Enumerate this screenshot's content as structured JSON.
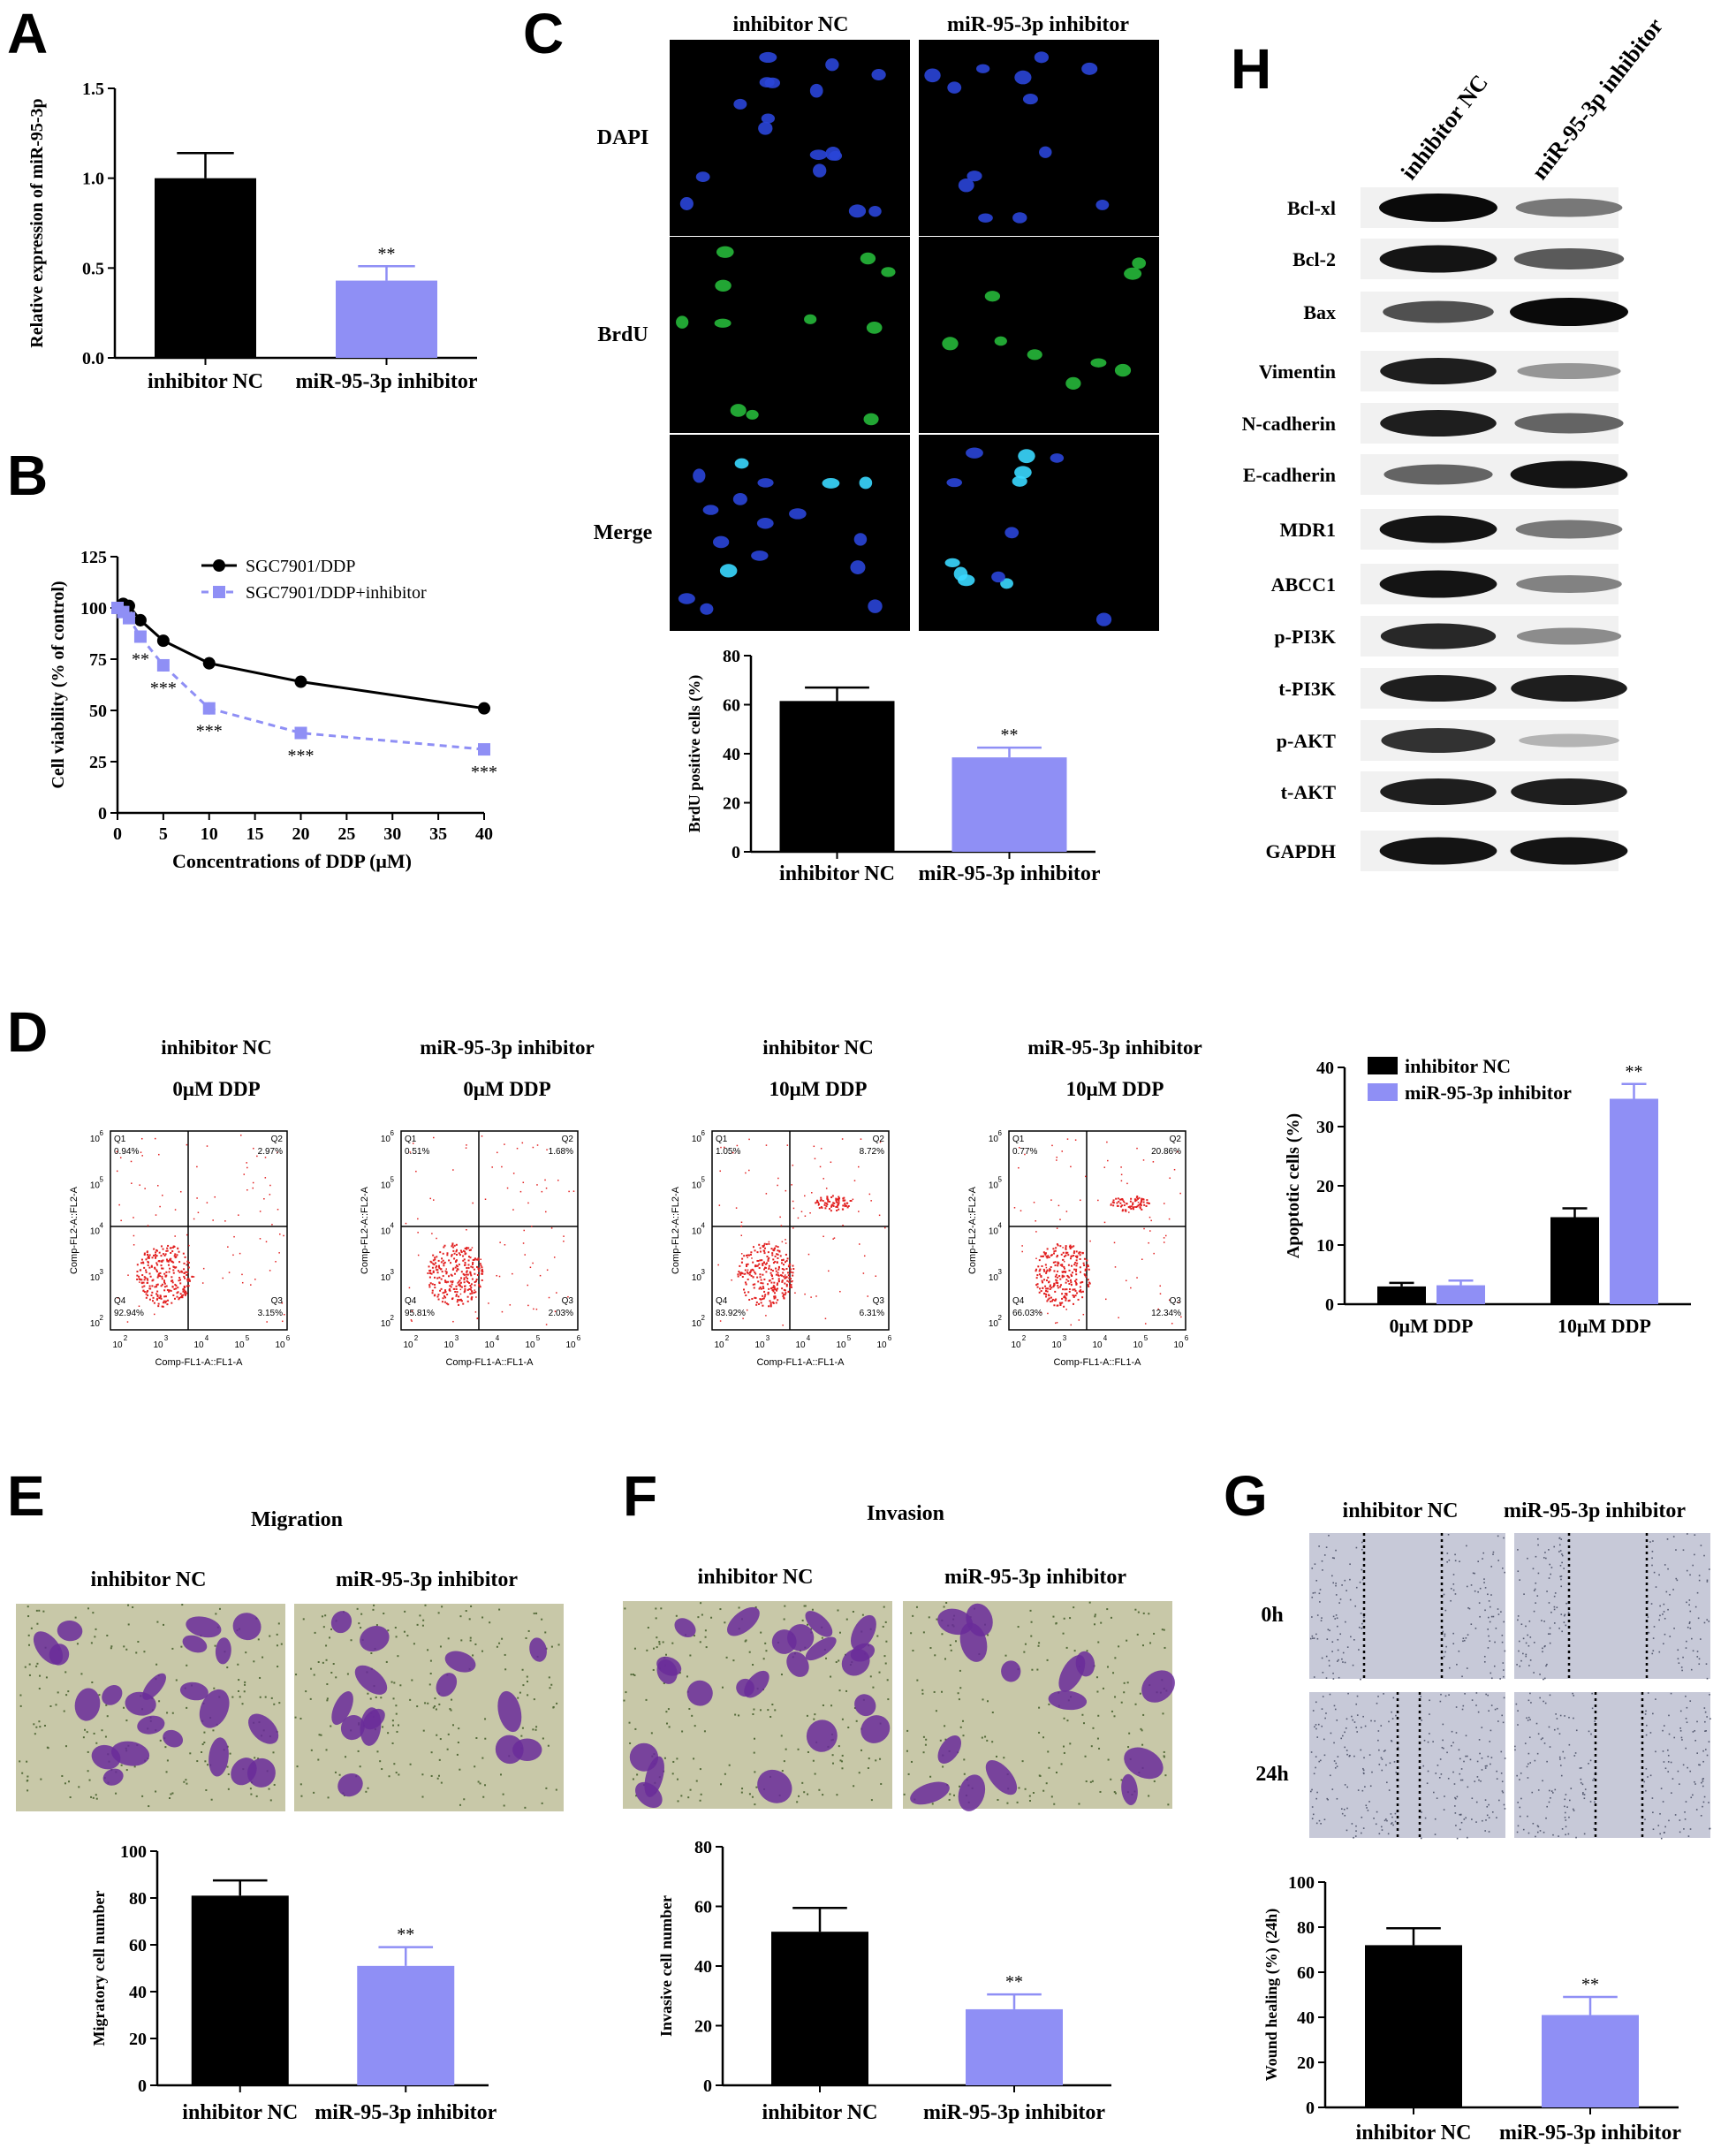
{
  "colors": {
    "nc": "#000000",
    "inh": "#8f8ff5",
    "dapi": "#2a45d8",
    "brdu": "#26b83a",
    "merge": "#3ad8ff",
    "flow": "#e22020",
    "crystal": "#6a2b9a",
    "crystal_bg": "#c8c8a8",
    "wound_bg": "#c7c9d8"
  },
  "chart_data": [
    {
      "panel": "A",
      "type": "bar",
      "categories": [
        "inhibitor NC",
        "miR-95-3p inhibitor"
      ],
      "values": [
        1.0,
        0.43
      ],
      "errors": [
        0.14,
        0.08
      ],
      "significance": [
        "",
        "**"
      ],
      "ylabel": "Relative expression of miR-95-3p",
      "ylim": [
        0,
        1.5
      ],
      "yticks": [
        "0.0",
        "0.5",
        "1.0",
        "1.5"
      ]
    },
    {
      "panel": "B",
      "type": "line",
      "xlabel": "Concentrations of DDP (μM)",
      "ylabel": "Cell viability (% of control)",
      "xlim": [
        0,
        40
      ],
      "ylim": [
        0,
        125
      ],
      "xticks": [
        "0",
        "5",
        "10",
        "15",
        "20",
        "25",
        "30",
        "35",
        "40"
      ],
      "yticks": [
        "0",
        "25",
        "50",
        "75",
        "100",
        "125"
      ],
      "series": [
        {
          "name": "SGC7901/DDP",
          "x": [
            0,
            0.625,
            1.25,
            2.5,
            5,
            10,
            20,
            40
          ],
          "y": [
            100,
            102,
            101,
            94,
            84,
            73,
            64,
            51
          ],
          "errors": [
            2,
            2,
            2,
            3,
            2,
            3,
            2,
            2
          ],
          "significance": [
            "",
            "",
            "",
            "",
            "",
            "",
            "",
            ""
          ]
        },
        {
          "name": "SGC7901/DDP+inhibitor",
          "x": [
            0,
            0.625,
            1.25,
            2.5,
            5,
            10,
            20,
            40
          ],
          "y": [
            100,
            98,
            95,
            86,
            72,
            51,
            39,
            31
          ],
          "errors": [
            2,
            2,
            2,
            3,
            3,
            3,
            2,
            2
          ],
          "significance": [
            "",
            "",
            "",
            "**",
            "***",
            "***",
            "***",
            "***"
          ]
        }
      ]
    },
    {
      "panel": "C",
      "type": "bar",
      "categories": [
        "inhibitor NC",
        "miR-95-3p inhibitor"
      ],
      "values": [
        61.5,
        38.5
      ],
      "errors": [
        5.5,
        4.0
      ],
      "significance": [
        "",
        "**"
      ],
      "ylabel": "BrdU positive cells (%)",
      "ylim": [
        0,
        80
      ],
      "yticks": [
        "0",
        "20",
        "40",
        "60",
        "80"
      ]
    },
    {
      "panel": "D",
      "type": "bar",
      "categories": [
        "0μM DDP",
        "10μM DDP"
      ],
      "series": [
        {
          "name": "inhibitor NC",
          "values": [
            3.0,
            14.7
          ],
          "errors": [
            0.6,
            1.5
          ]
        },
        {
          "name": "miR-95-3p inhibitor",
          "values": [
            3.2,
            34.7
          ],
          "errors": [
            0.8,
            2.5
          ]
        }
      ],
      "significance": [
        "",
        "**"
      ],
      "ylabel": "Apoptotic cells (%)",
      "ylim": [
        0,
        40
      ],
      "yticks": [
        "0",
        "10",
        "20",
        "30",
        "40"
      ]
    },
    {
      "panel": "E",
      "type": "bar",
      "categories": [
        "inhibitor NC",
        "miR-95-3p inhibitor"
      ],
      "values": [
        81,
        51
      ],
      "errors": [
        6.5,
        8
      ],
      "significance": [
        "",
        "**"
      ],
      "ylabel": "Migratory cell number",
      "ylim": [
        0,
        100
      ],
      "yticks": [
        "0",
        "20",
        "40",
        "60",
        "80",
        "100"
      ]
    },
    {
      "panel": "F",
      "type": "bar",
      "categories": [
        "inhibitor NC",
        "miR-95-3p inhibitor"
      ],
      "values": [
        51.5,
        25.5
      ],
      "errors": [
        8,
        5
      ],
      "significance": [
        "",
        "**"
      ],
      "ylabel": "Invasive cell number",
      "ylim": [
        0,
        80
      ],
      "yticks": [
        "0",
        "20",
        "40",
        "60",
        "80"
      ]
    },
    {
      "panel": "G",
      "type": "bar",
      "categories": [
        "inhibitor NC",
        "miR-95-3p inhibitor"
      ],
      "values": [
        72,
        41
      ],
      "errors": [
        7.5,
        8
      ],
      "significance": [
        "",
        "**"
      ],
      "ylabel": "Wound healing (%) (24h)",
      "ylim": [
        0,
        100
      ],
      "yticks": [
        "0",
        "20",
        "40",
        "60",
        "80",
        "100"
      ]
    }
  ],
  "panels": {
    "letters": [
      "A",
      "B",
      "C",
      "D",
      "E",
      "F",
      "G",
      "H"
    ],
    "C": {
      "columns": [
        "inhibitor NC",
        "miR-95-3p inhibitor"
      ],
      "rows": [
        "DAPI",
        "BrdU",
        "Merge"
      ]
    },
    "D": {
      "columns": [
        {
          "group": "inhibitor NC",
          "dose": "0μM DDP",
          "q1": "0.94%",
          "q2": "2.97%",
          "q3": "3.15%",
          "q4": "92.94%"
        },
        {
          "group": "miR-95-3p inhibitor",
          "dose": "0μM DDP",
          "q1": "0.51%",
          "q2": "1.68%",
          "q3": "2.03%",
          "q4": "95.81%"
        },
        {
          "group": "inhibitor NC",
          "dose": "10μM DDP",
          "q1": "1.05%",
          "q2": "8.72%",
          "q3": "6.31%",
          "q4": "83.92%"
        },
        {
          "group": "miR-95-3p inhibitor",
          "dose": "10μM DDP",
          "q1": "0.77%",
          "q2": "20.86%",
          "q3": "12.34%",
          "q4": "66.03%"
        }
      ],
      "quadrants": [
        "Q1",
        "Q2",
        "Q3",
        "Q4"
      ],
      "x_axis": "Comp-FL1-A::FL1-A",
      "y_axis": "Comp-FL2-A::FL2-A",
      "exponents": [
        "2",
        "3",
        "4",
        "5",
        "6"
      ]
    },
    "E": {
      "title": "Migration",
      "columns": [
        "inhibitor NC",
        "miR-95-3p inhibitor"
      ]
    },
    "F": {
      "title": "Invasion",
      "columns": [
        "inhibitor NC",
        "miR-95-3p inhibitor"
      ]
    },
    "G": {
      "columns": [
        "inhibitor NC",
        "miR-95-3p inhibitor"
      ],
      "rows": [
        "0h",
        "24h"
      ]
    },
    "H": {
      "columns": [
        "inhibitor NC",
        "miR-95-3p inhibitor"
      ],
      "bands": [
        {
          "label": "Bcl-xl",
          "intensity": [
            1.0,
            0.45
          ]
        },
        {
          "label": "Bcl-2",
          "intensity": [
            0.95,
            0.6
          ]
        },
        {
          "label": "Bax",
          "intensity": [
            0.65,
            1.0
          ]
        },
        {
          "label": "Vimentin",
          "intensity": [
            0.9,
            0.3
          ]
        },
        {
          "label": "N-cadherin",
          "intensity": [
            0.9,
            0.55
          ]
        },
        {
          "label": "E-cadherin",
          "intensity": [
            0.55,
            0.95
          ]
        },
        {
          "label": "MDR1",
          "intensity": [
            0.95,
            0.45
          ]
        },
        {
          "label": "ABCC1",
          "intensity": [
            0.95,
            0.4
          ]
        },
        {
          "label": "p-PI3K",
          "intensity": [
            0.85,
            0.35
          ]
        },
        {
          "label": "t-PI3K",
          "intensity": [
            0.9,
            0.9
          ]
        },
        {
          "label": "p-AKT",
          "intensity": [
            0.8,
            0.15
          ]
        },
        {
          "label": "t-AKT",
          "intensity": [
            0.9,
            0.9
          ]
        },
        {
          "label": "GAPDH",
          "intensity": [
            0.95,
            0.95
          ]
        }
      ]
    }
  }
}
